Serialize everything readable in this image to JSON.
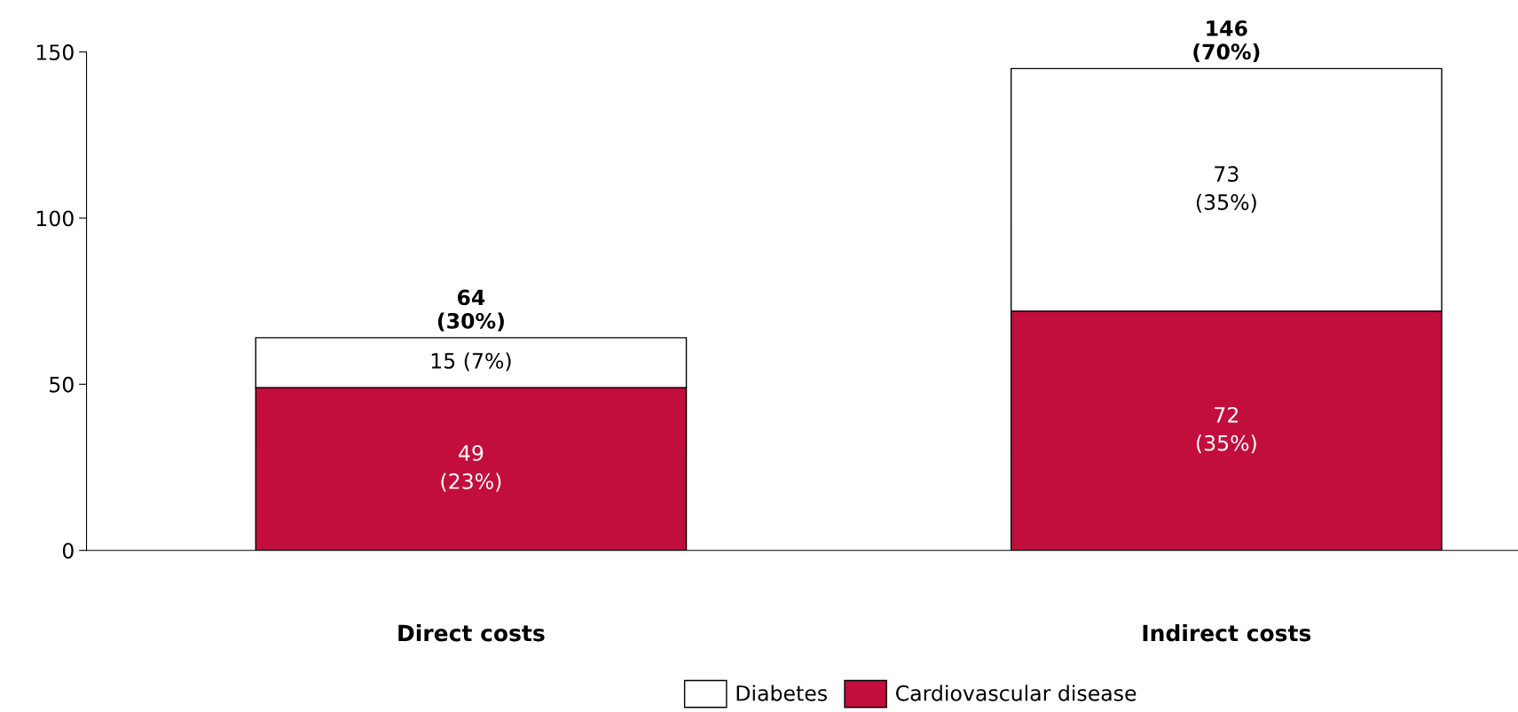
{
  "chart_data": {
    "type": "bar",
    "stacked": true,
    "categories": [
      "Direct costs",
      "Indirect costs"
    ],
    "series": [
      {
        "name": "Cardiovascular disease",
        "color": "#c20e3c",
        "values": [
          49,
          72
        ],
        "value_labels": [
          "49\n(23%)",
          "72\n(35%)"
        ]
      },
      {
        "name": "Diabetes",
        "color": "#ffffff",
        "values": [
          15,
          73
        ],
        "value_labels": [
          "15 (7%)",
          "73\n(35%)"
        ]
      }
    ],
    "totals": [
      "64\n(30%)",
      "146\n(70%)"
    ],
    "ylim": [
      0,
      150
    ],
    "yticks": [
      0,
      50,
      100,
      150
    ],
    "grid": false,
    "legend": "bottom"
  }
}
